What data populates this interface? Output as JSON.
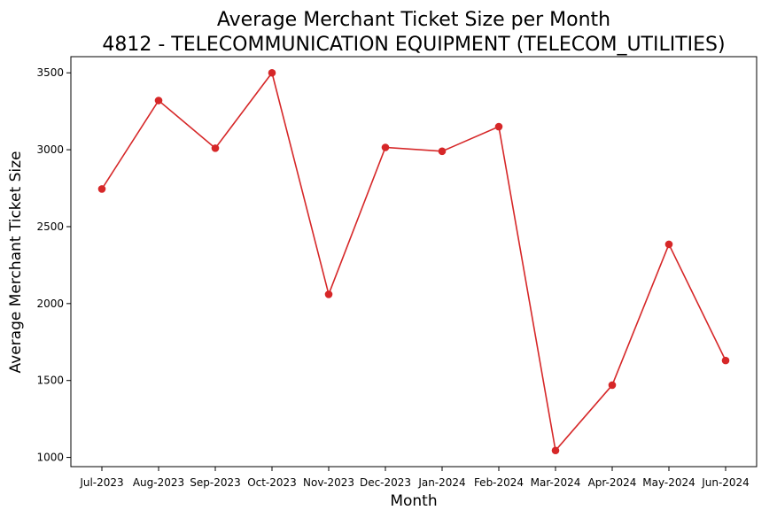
{
  "chart_data": {
    "type": "line",
    "title": "Average Merchant Ticket Size per Month",
    "subtitle": "4812 - TELECOMMUNICATION EQUIPMENT (TELECOM_UTILITIES)",
    "xlabel": "Month",
    "ylabel": "Average Merchant Ticket Size",
    "categories": [
      "Jul-2023",
      "Aug-2023",
      "Sep-2023",
      "Oct-2023",
      "Nov-2023",
      "Dec-2023",
      "Jan-2024",
      "Feb-2024",
      "Mar-2024",
      "Apr-2024",
      "May-2024",
      "Jun-2024"
    ],
    "series": [
      {
        "values": [
          2745,
          3320,
          3010,
          3500,
          2060,
          3015,
          2990,
          3150,
          1045,
          1470,
          2385,
          1630
        ],
        "color": "#d62728",
        "marker": "circle"
      }
    ],
    "ylim": [
      940,
      3605
    ],
    "yticks": [
      1000,
      1500,
      2000,
      2500,
      3000,
      3500
    ],
    "grid": false,
    "legend": "none"
  }
}
